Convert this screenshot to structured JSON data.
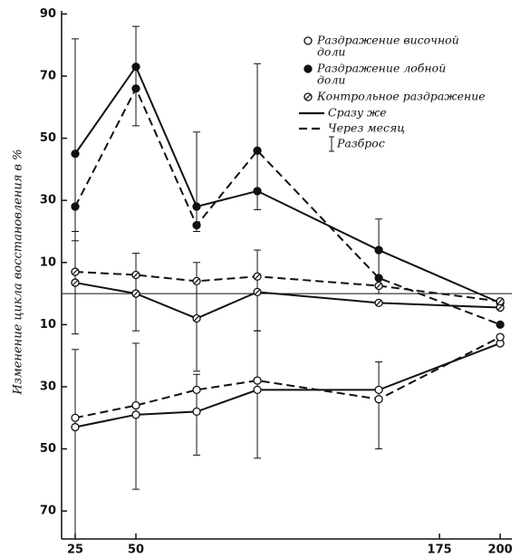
{
  "chart_data": {
    "type": "line",
    "y_label": "Изменение цикла восстановления в %",
    "x": [
      25,
      50,
      75,
      100,
      150,
      200
    ],
    "xlim": [
      19.4,
      204.8
    ],
    "xticks": [
      25,
      50,
      175,
      200
    ],
    "ylim": [
      -79,
      91
    ],
    "yticks": [
      90,
      70,
      50,
      30,
      10,
      {
        "value": -10,
        "label": "10"
      },
      {
        "value": -30,
        "label": "30"
      },
      {
        "value": -50,
        "label": "50"
      },
      {
        "value": -70,
        "label": "70"
      }
    ],
    "hline": 0,
    "color": "#111111",
    "series": [
      {
        "marker": "filled",
        "line": "solid",
        "values": [
          45,
          73,
          28,
          33,
          14,
          -3
        ]
      },
      {
        "marker": "filled",
        "line": "dashed",
        "values": [
          28,
          66,
          22,
          46,
          5,
          -10
        ]
      },
      {
        "marker": "crossed",
        "line": "solid",
        "values": [
          3.5,
          0,
          -8,
          0.5,
          -3,
          -4.5
        ]
      },
      {
        "marker": "crossed",
        "line": "dashed",
        "values": [
          7,
          6,
          4,
          5.5,
          2.5,
          -2.5
        ]
      },
      {
        "marker": "open",
        "line": "solid",
        "values": [
          -43,
          -39,
          -38,
          -31,
          -31,
          -16
        ]
      },
      {
        "marker": "open",
        "line": "dashed",
        "values": [
          -40,
          -36,
          -31,
          -28,
          -34,
          -14
        ]
      }
    ],
    "errors": [
      {
        "x": 25,
        "low": 17,
        "high": 82
      },
      {
        "x": 25,
        "low": -13,
        "high": 20
      },
      {
        "x": 25,
        "low": -79,
        "high": -18
      },
      {
        "x": 50,
        "low": 54,
        "high": 86
      },
      {
        "x": 50,
        "low": -12,
        "high": 13
      },
      {
        "x": 50,
        "low": -63,
        "high": -16
      },
      {
        "x": 75,
        "low": 20,
        "high": 52
      },
      {
        "x": 75,
        "low": -25,
        "high": 10
      },
      {
        "x": 75,
        "low": -52,
        "high": -26
      },
      {
        "x": 100,
        "low": 27,
        "high": 74
      },
      {
        "x": 100,
        "low": -12,
        "high": 14
      },
      {
        "x": 100,
        "low": -53,
        "high": -12
      },
      {
        "x": 150,
        "low": 0,
        "high": 24
      },
      {
        "x": 150,
        "low": -50,
        "high": -22
      }
    ],
    "legend": {
      "markers": [
        {
          "marker": "open",
          "label": [
            "Раздражение височной",
            "доли"
          ]
        },
        {
          "marker": "filled",
          "label": [
            "Раздражение лобной",
            "доли"
          ]
        },
        {
          "marker": "crossed",
          "label": [
            "Контрольное раздражение"
          ]
        }
      ],
      "lines": [
        {
          "line": "solid",
          "label": "Сразу же"
        },
        {
          "line": "dashed",
          "label": "Через месяц"
        }
      ],
      "error_label": "Разброс"
    }
  }
}
